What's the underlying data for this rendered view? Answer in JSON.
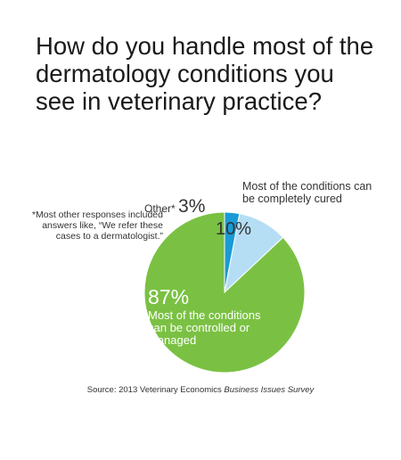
{
  "title": "How do you handle most of the dermatology conditions you see in veterinary practice?",
  "footnote": "*Most other responses included answers like, “We refer these cases to a dermatologist.”",
  "source": {
    "prefix": "Source: 2013 ",
    "publication": "Veterinary Economics ",
    "survey": "Business Issues Survey"
  },
  "chart_data": {
    "type": "pie",
    "slices": [
      {
        "label": "Other*",
        "percent_label": "3%",
        "value": 3,
        "color": "#1a9ad6"
      },
      {
        "label": "Most of the conditions can be completely cured",
        "percent_label": "10%",
        "value": 10,
        "color": "#b5def5"
      },
      {
        "label": "Most of the conditions can be controlled or managed",
        "percent_label": "87%",
        "value": 87,
        "color": "#7ac143"
      }
    ],
    "start": "12 o'clock",
    "direction": "clockwise",
    "legend": "none"
  }
}
